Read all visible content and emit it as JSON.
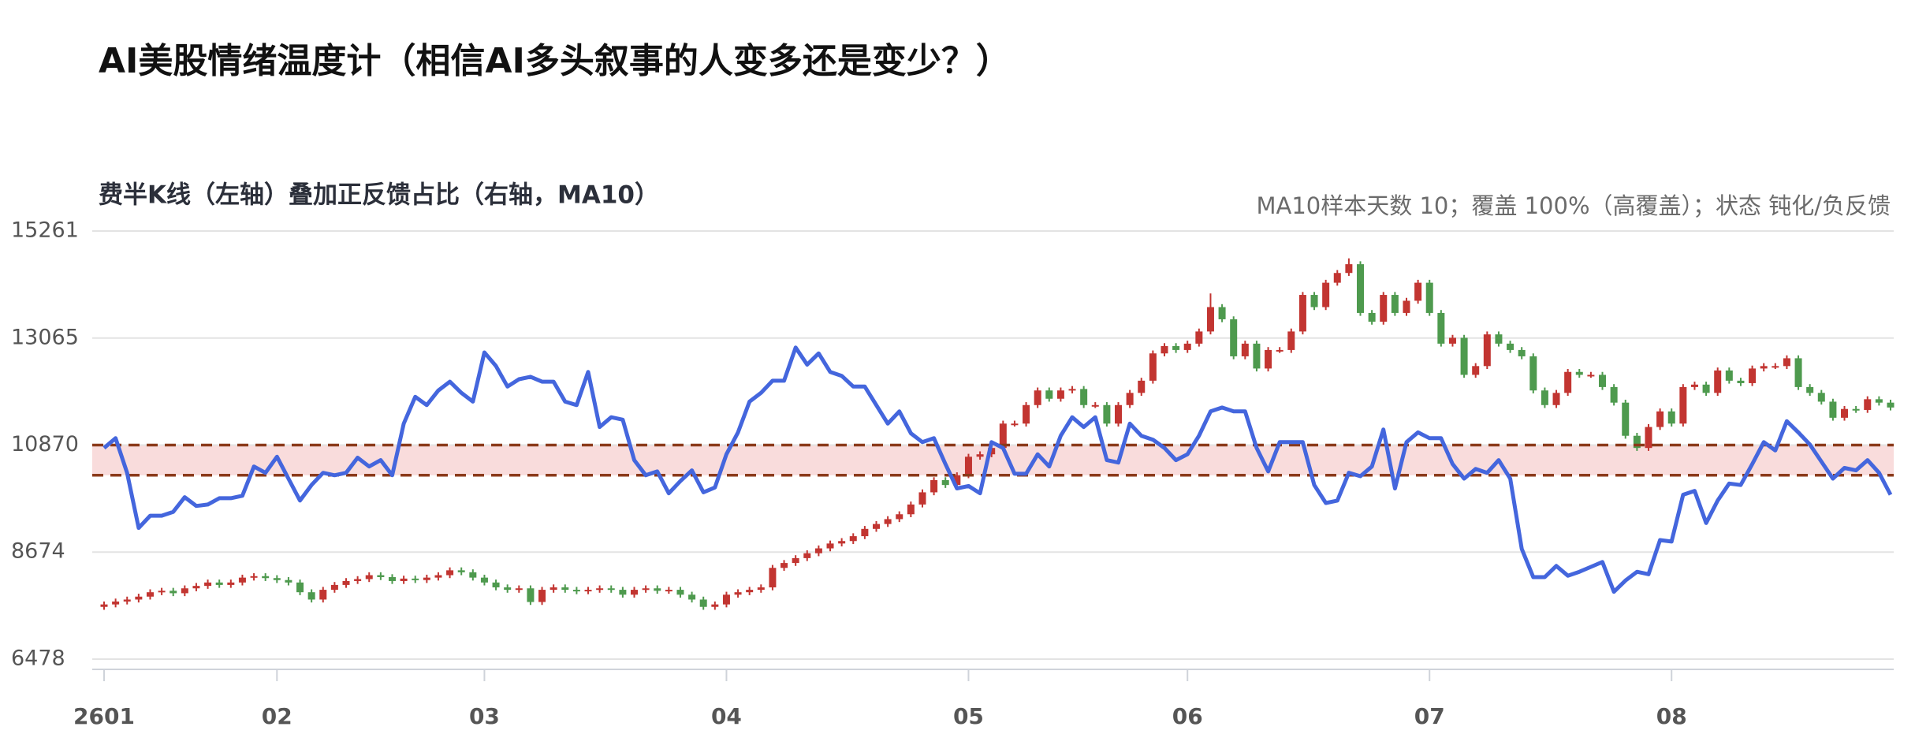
{
  "chart_data": {
    "type": "candlestick",
    "title": "AI美股情绪温度计（相信AI多头叙事的人变多还是变少？）",
    "subtitle": "费半K线（左轴）叠加正反馈占比（右轴，MA10）",
    "note": "MA10样本天数 10；覆盖 100%（高覆盖）；状态 钝化/负反馈",
    "ylim": [
      6478,
      15261
    ],
    "yticks": [
      6478,
      8674,
      10870,
      13065,
      15261
    ],
    "grid": true,
    "thresholds": [
      10250,
      10870
    ],
    "threshold_color": "#8b3a1a",
    "band_color": "#f9dcdc",
    "categories": [
      "2601",
      null,
      null,
      null,
      null,
      null,
      null,
      null,
      null,
      null,
      null,
      null,
      null,
      null,
      null,
      "02",
      null,
      null,
      null,
      null,
      null,
      null,
      null,
      null,
      null,
      null,
      null,
      null,
      null,
      null,
      null,
      null,
      null,
      "03",
      null,
      null,
      null,
      null,
      null,
      null,
      null,
      null,
      null,
      null,
      null,
      null,
      null,
      null,
      null,
      null,
      null,
      null,
      null,
      null,
      "04",
      null,
      null,
      null,
      null,
      null,
      null,
      null,
      null,
      null,
      null,
      null,
      null,
      null,
      null,
      null,
      null,
      null,
      null,
      null,
      null,
      "05",
      null,
      null,
      null,
      null,
      null,
      null,
      null,
      null,
      null,
      null,
      null,
      null,
      null,
      null,
      null,
      null,
      null,
      null,
      "06",
      null,
      null,
      null,
      null,
      null,
      null,
      null,
      null,
      null,
      null,
      null,
      null,
      null,
      null,
      null,
      null,
      null,
      null,
      null,
      null,
      "07",
      null,
      null,
      null,
      null,
      null,
      null,
      null,
      null,
      null,
      null,
      null,
      null,
      null,
      null,
      null,
      null,
      null,
      null,
      null,
      null,
      "08",
      null,
      null,
      null,
      null,
      null,
      null,
      null,
      null,
      null,
      null,
      null,
      null,
      null,
      null,
      null,
      null,
      null,
      null,
      null
    ],
    "series": [
      {
        "type": "candlestick",
        "up_color": "#c23531",
        "down_color": "#4e9a4e",
        "open": [
          7550,
          7600,
          7660,
          7700,
          7760,
          7850,
          7880,
          7830,
          7930,
          7980,
          8050,
          8000,
          8050,
          8150,
          8180,
          8140,
          8100,
          8050,
          7850,
          7700,
          7900,
          8000,
          8080,
          8120,
          8200,
          8160,
          8080,
          8130,
          8100,
          8150,
          8200,
          8300,
          8260,
          8150,
          8050,
          7950,
          7900,
          7930,
          7650,
          7900,
          7950,
          7900,
          7870,
          7900,
          7930,
          7900,
          7800,
          7900,
          7930,
          7880,
          7900,
          7800,
          7700,
          7550,
          7600,
          7800,
          7850,
          7900,
          7950,
          8350,
          8450,
          8550,
          8650,
          8750,
          8850,
          8900,
          9000,
          9150,
          9250,
          9350,
          9450,
          9650,
          9900,
          10150,
          10050,
          10250,
          10630,
          10680,
          10810,
          11310,
          11310,
          11690,
          11990,
          11820,
          11990,
          12020,
          11690,
          11690,
          11310,
          11690,
          11940,
          12190,
          12750,
          12900,
          12820,
          12950,
          13200,
          13700,
          13450,
          12690,
          12950,
          12440,
          12820,
          12820,
          13200,
          13950,
          13700,
          14200,
          14400,
          14580,
          13580,
          13400,
          13950,
          13580,
          13830,
          14200,
          13580,
          12950,
          13070,
          12310,
          12490,
          13140,
          12950,
          12820,
          12690,
          11990,
          11690,
          11940,
          12370,
          12310,
          12310,
          12060,
          11740,
          11060,
          10810,
          11240,
          11560,
          11310,
          12060,
          12110,
          11940,
          12400,
          12190,
          12140,
          12440,
          12490,
          12490,
          12650,
          12060,
          11940,
          11760,
          11430,
          11610,
          11590,
          11810,
          11740
        ],
        "high": [
          7660,
          7720,
          7760,
          7820,
          7910,
          7940,
          7940,
          7990,
          8040,
          8110,
          8110,
          8110,
          8210,
          8240,
          8240,
          8200,
          8160,
          8110,
          7910,
          7960,
          8060,
          8140,
          8180,
          8260,
          8260,
          8220,
          8190,
          8190,
          8210,
          8260,
          8360,
          8360,
          8320,
          8210,
          8110,
          8010,
          7990,
          7990,
          7960,
          8010,
          8010,
          7960,
          7960,
          7990,
          7990,
          7960,
          7960,
          7990,
          7990,
          7960,
          7960,
          7860,
          7760,
          7660,
          7860,
          7910,
          7960,
          8010,
          8410,
          8510,
          8610,
          8710,
          8810,
          8910,
          8960,
          9060,
          9210,
          9310,
          9410,
          9510,
          9710,
          9960,
          10210,
          10210,
          10310,
          10690,
          10740,
          10870,
          11370,
          11370,
          11750,
          12050,
          12050,
          12050,
          12080,
          12080,
          11750,
          11750,
          11750,
          12000,
          12250,
          12810,
          12960,
          12960,
          13010,
          13260,
          13980,
          13760,
          13510,
          13010,
          13010,
          12880,
          12880,
          13260,
          14010,
          14010,
          14260,
          14460,
          14700,
          14640,
          13640,
          14010,
          14010,
          13890,
          14260,
          14260,
          13640,
          13130,
          13130,
          12550,
          13200,
          13200,
          13010,
          12880,
          12750,
          12050,
          12000,
          12430,
          12430,
          12370,
          12370,
          12120,
          11800,
          11120,
          11300,
          11620,
          11620,
          12120,
          12170,
          12170,
          12460,
          12460,
          12250,
          12500,
          12550,
          12550,
          12710,
          12710,
          12120,
          12000,
          11820,
          11670,
          11670,
          11870,
          11870,
          11800
        ],
        "low": [
          7490,
          7540,
          7600,
          7640,
          7700,
          7790,
          7770,
          7770,
          7870,
          7920,
          7940,
          7940,
          7990,
          8090,
          8080,
          8040,
          7990,
          7790,
          7640,
          7640,
          7840,
          7940,
          8020,
          8060,
          8100,
          8020,
          8020,
          8040,
          8040,
          8090,
          8140,
          8200,
          8090,
          7990,
          7890,
          7840,
          7840,
          7590,
          7590,
          7840,
          7840,
          7810,
          7810,
          7840,
          7840,
          7740,
          7740,
          7840,
          7820,
          7820,
          7740,
          7640,
          7490,
          7490,
          7540,
          7740,
          7790,
          7840,
          7890,
          8290,
          8390,
          8490,
          8590,
          8690,
          8790,
          8840,
          8940,
          9090,
          9190,
          9290,
          9390,
          9590,
          9840,
          9990,
          9990,
          10190,
          10570,
          10620,
          10750,
          11250,
          11250,
          11630,
          11760,
          11760,
          11930,
          11630,
          11630,
          11250,
          11250,
          11630,
          11880,
          12130,
          12690,
          12760,
          12760,
          12890,
          13140,
          13390,
          12630,
          12630,
          12380,
          12380,
          12760,
          12760,
          13140,
          13640,
          13640,
          14140,
          14340,
          13520,
          13340,
          13340,
          13520,
          13520,
          13770,
          13520,
          12890,
          12890,
          12250,
          12250,
          12430,
          12890,
          12760,
          12630,
          11930,
          11630,
          11630,
          11880,
          12250,
          12250,
          12000,
          11680,
          11000,
          10750,
          10750,
          11180,
          11250,
          11250,
          12000,
          11880,
          11880,
          12130,
          12080,
          12080,
          12380,
          12430,
          12430,
          12000,
          11880,
          11700,
          11370,
          11370,
          11530,
          11530,
          11680,
          11580
        ],
        "close": [
          7600,
          7660,
          7700,
          7760,
          7850,
          7880,
          7830,
          7930,
          7980,
          8050,
          8000,
          8050,
          8150,
          8180,
          8140,
          8100,
          8050,
          7850,
          7700,
          7900,
          8000,
          8080,
          8120,
          8200,
          8160,
          8080,
          8130,
          8100,
          8150,
          8200,
          8300,
          8260,
          8150,
          8050,
          7950,
          7900,
          7930,
          7650,
          7900,
          7950,
          7900,
          7870,
          7900,
          7930,
          7900,
          7800,
          7900,
          7930,
          7880,
          7900,
          7800,
          7700,
          7550,
          7600,
          7800,
          7850,
          7900,
          7950,
          8350,
          8450,
          8550,
          8650,
          8750,
          8850,
          8900,
          9000,
          9150,
          9250,
          9350,
          9450,
          9650,
          9900,
          10150,
          10050,
          10250,
          10630,
          10680,
          10810,
          11310,
          11310,
          11690,
          11990,
          11820,
          11990,
          12020,
          11690,
          11690,
          11310,
          11690,
          11940,
          12190,
          12750,
          12900,
          12820,
          12950,
          13200,
          13700,
          13450,
          12690,
          12950,
          12440,
          12820,
          12820,
          13200,
          13950,
          13700,
          14200,
          14400,
          14580,
          13580,
          13400,
          13950,
          13580,
          13830,
          14200,
          13580,
          12950,
          13070,
          12310,
          12490,
          13140,
          12950,
          12820,
          12690,
          11990,
          11690,
          11940,
          12370,
          12310,
          12310,
          12060,
          11740,
          11060,
          10810,
          11240,
          11560,
          11310,
          12060,
          12110,
          11940,
          12400,
          12190,
          12140,
          12440,
          12490,
          12490,
          12650,
          12060,
          11940,
          11760,
          11430,
          11610,
          11590,
          11810,
          11740,
          11640
        ]
      },
      {
        "type": "line",
        "color": "#4466dd",
        "values": [
          10810,
          11010,
          10300,
          9170,
          9420,
          9420,
          9500,
          9800,
          9620,
          9650,
          9780,
          9780,
          9830,
          10430,
          10300,
          10630,
          10180,
          9730,
          10050,
          10300,
          10250,
          10300,
          10610,
          10430,
          10560,
          10250,
          11310,
          11860,
          11690,
          11990,
          12170,
          11940,
          11760,
          12770,
          12490,
          12070,
          12220,
          12270,
          12170,
          12170,
          11760,
          11690,
          12370,
          11240,
          11440,
          11390,
          10560,
          10250,
          10330,
          9880,
          10130,
          10350,
          9900,
          10000,
          10680,
          11130,
          11760,
          11940,
          12190,
          12190,
          12870,
          12520,
          12750,
          12370,
          12290,
          12070,
          12070,
          11690,
          11310,
          11560,
          11110,
          10930,
          11010,
          10480,
          9980,
          10030,
          9880,
          10930,
          10810,
          10280,
          10280,
          10680,
          10430,
          11060,
          11440,
          11240,
          11440,
          10560,
          10510,
          11310,
          11060,
          10980,
          10810,
          10560,
          10680,
          11060,
          11560,
          11640,
          11560,
          11560,
          10810,
          10330,
          10930,
          10930,
          10930,
          10050,
          9680,
          9730,
          10300,
          10230,
          10430,
          11190,
          9980,
          10930,
          11130,
          11010,
          11010,
          10480,
          10180,
          10380,
          10300,
          10560,
          10180,
          8740,
          8160,
          8160,
          8390,
          8190,
          8270,
          8370,
          8470,
          7860,
          8090,
          8270,
          8220,
          8920,
          8890,
          9850,
          9930,
          9270,
          9730,
          10080,
          10050,
          10480,
          10930,
          10760,
          11360,
          11130,
          10880,
          10530,
          10180,
          10400,
          10350,
          10560,
          10300,
          9850
        ]
      }
    ]
  }
}
